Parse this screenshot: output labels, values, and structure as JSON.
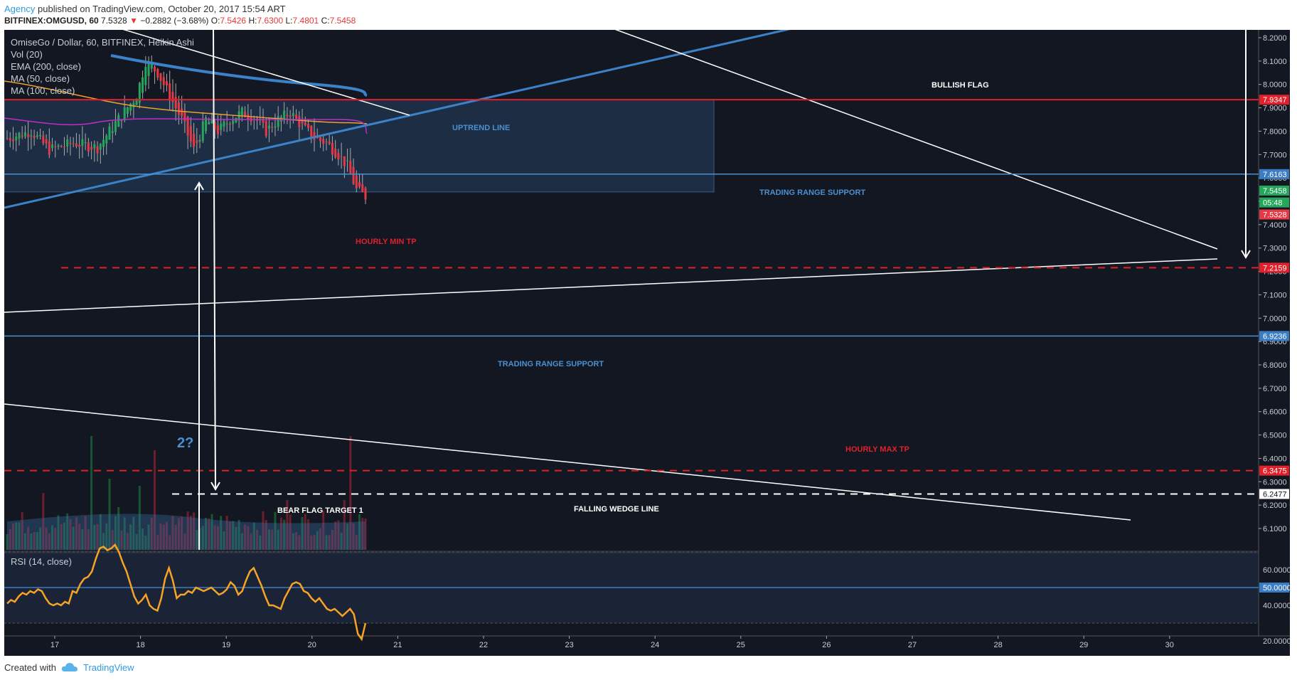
{
  "header": {
    "author": "Agency",
    "published": "published on TradingView.com, October 20, 2017 15:54 ART",
    "symbol": "BITFINEX:OMGUSD, 60",
    "last": "7.5328",
    "change_arrow": "▼",
    "change": "−0.2882 (−3.68%)",
    "open_label": "O:",
    "open": "7.5426",
    "high_label": "H:",
    "high": "7.6300",
    "low_label": "L:",
    "low": "7.4801",
    "close_label": "C:",
    "close": "7.5458"
  },
  "legend": {
    "title": "OmiseGo / Dollar, 60, BITFINEX, Heikin Ashi",
    "vol": "Vol (20)",
    "ema": "EMA (200, close)",
    "ma50": "MA (50, close)",
    "ma100": "MA (100, close)",
    "rsi": "RSI (14, close)"
  },
  "footer": {
    "created": "Created with",
    "brand": "TradingView"
  },
  "colors": {
    "background": "#131722",
    "up": "#26a65b",
    "down": "#e53945",
    "ema": "#3b82c8",
    "ma50": "#f0a030",
    "ma100": "#c22cc8",
    "rsi": "#f7a325",
    "support": "#4a90d0",
    "target_red": "#e0202a"
  },
  "annotations": {
    "bullish_flag": "BULLISH FLAG",
    "uptrend_line": "UPTREND LINE",
    "trading_range_support_1": "TRADING RANGE SUPPORT",
    "trading_range_support_2": "TRADING RANGE SUPPORT",
    "hourly_min_tp": "HOURLY MIN TP",
    "hourly_max_tp": "HOURLY MAX TP",
    "bear_flag_target": "BEAR FLAG TARGET 1",
    "falling_wedge_line": "FALLING WEDGE LINE",
    "question": "2?"
  },
  "chart_data": {
    "type": "candlestick",
    "x_ticks": [
      "17",
      "18",
      "19",
      "20",
      "21",
      "22",
      "23",
      "24",
      "25",
      "26",
      "27",
      "28",
      "29",
      "30"
    ],
    "price_ticks": [
      "8.2000",
      "8.1000",
      "8.0000",
      "7.9000",
      "7.8000",
      "7.7000",
      "7.6000",
      "7.5000",
      "7.4000",
      "7.3000",
      "7.2000",
      "7.1000",
      "7.0000",
      "6.9000",
      "6.8000",
      "6.7000",
      "6.6000",
      "6.5000",
      "6.4000",
      "6.3000",
      "6.2000",
      "6.1000"
    ],
    "ylim": [
      6.01,
      8.24
    ],
    "price_labels": [
      {
        "value": "7.9347",
        "level": 7.9347,
        "color": "#e0202a"
      },
      {
        "value": "7.6163",
        "level": 7.6163,
        "color": "#3b7dc4"
      },
      {
        "value": "7.5458",
        "level": 7.5458,
        "color": "#26a65b"
      },
      {
        "value": "05:48",
        "level": 7.495,
        "color": "#26a65b"
      },
      {
        "value": "7.5328",
        "level": 7.4436,
        "color": "#e53945"
      },
      {
        "value": "7.2159",
        "level": 7.2159,
        "color": "#e0202a"
      },
      {
        "value": "6.9236",
        "level": 6.9236,
        "color": "#3b7dc4"
      },
      {
        "value": "6.3475",
        "level": 6.3475,
        "color": "#e0202a"
      },
      {
        "value": "6.2477",
        "level": 6.2477,
        "color": "#ffffff"
      }
    ],
    "levels": {
      "resistance": 7.9347,
      "range_support_1": 7.6163,
      "hourly_min_tp": 7.2159,
      "range_support_2": 6.9236,
      "hourly_max_tp": 6.3475,
      "bear_flag_target_1": 6.2477
    },
    "rsi": {
      "ticks": [
        "60.0000",
        "50.0000",
        "40.0000",
        "20.0000"
      ],
      "current_label": "50.0000",
      "ylim": [
        18,
        78
      ],
      "values": [
        41,
        43,
        42,
        45,
        47,
        46,
        48,
        47,
        49,
        48,
        44,
        41,
        40,
        41,
        40,
        42,
        41,
        48,
        47,
        52,
        55,
        56,
        59,
        66,
        72,
        73,
        71,
        72,
        74,
        70,
        64,
        59,
        52,
        45,
        41,
        43,
        46,
        40,
        38,
        37,
        44,
        55,
        61,
        54,
        44,
        46,
        46,
        48,
        47,
        50,
        49,
        48,
        49,
        50,
        48,
        46,
        47,
        49,
        53,
        51,
        46,
        48,
        54,
        59,
        61,
        56,
        51,
        45,
        40,
        40,
        39,
        38,
        44,
        48,
        52,
        53,
        52,
        48,
        47,
        44,
        42,
        44,
        41,
        38,
        37,
        38,
        36,
        34,
        36,
        38,
        35,
        24,
        21,
        30
      ]
    }
  }
}
